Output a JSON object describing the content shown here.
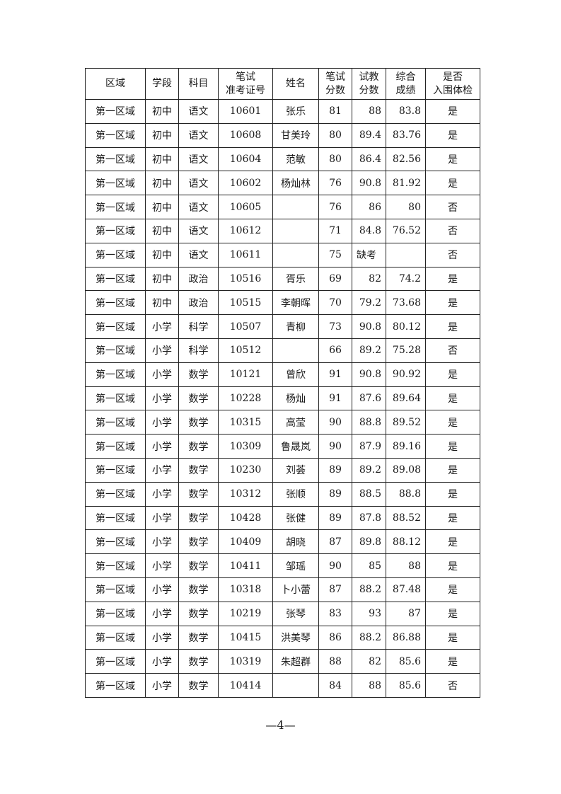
{
  "table": {
    "headers": [
      [
        "区域"
      ],
      [
        "学段"
      ],
      [
        "科目"
      ],
      [
        "笔试",
        "准考证号"
      ],
      [
        "姓名"
      ],
      [
        "笔试",
        "分数"
      ],
      [
        "试教",
        "分数"
      ],
      [
        "综合",
        "成绩"
      ],
      [
        "是否",
        "入围体检"
      ]
    ],
    "rows": [
      [
        "第一区域",
        "初中",
        "语文",
        "10601",
        "张乐",
        "81",
        "88",
        "83.8",
        "是"
      ],
      [
        "第一区域",
        "初中",
        "语文",
        "10608",
        "甘美玲",
        "80",
        "89.4",
        "83.76",
        "是"
      ],
      [
        "第一区域",
        "初中",
        "语文",
        "10604",
        "范敏",
        "80",
        "86.4",
        "82.56",
        "是"
      ],
      [
        "第一区域",
        "初中",
        "语文",
        "10602",
        "杨灿林",
        "76",
        "90.8",
        "81.92",
        "是"
      ],
      [
        "第一区域",
        "初中",
        "语文",
        "10605",
        "",
        "76",
        "86",
        "80",
        "否"
      ],
      [
        "第一区域",
        "初中",
        "语文",
        "10612",
        "",
        "71",
        "84.8",
        "76.52",
        "否"
      ],
      [
        "第一区域",
        "初中",
        "语文",
        "10611",
        "",
        "75",
        "缺考",
        "",
        "否"
      ],
      [
        "第一区域",
        "初中",
        "政治",
        "10516",
        "胥乐",
        "69",
        "82",
        "74.2",
        "是"
      ],
      [
        "第一区域",
        "初中",
        "政治",
        "10515",
        "李朝晖",
        "70",
        "79.2",
        "73.68",
        "是"
      ],
      [
        "第一区域",
        "小学",
        "科学",
        "10507",
        "青柳",
        "73",
        "90.8",
        "80.12",
        "是"
      ],
      [
        "第一区域",
        "小学",
        "科学",
        "10512",
        "",
        "66",
        "89.2",
        "75.28",
        "否"
      ],
      [
        "第一区域",
        "小学",
        "数学",
        "10121",
        "曾欣",
        "91",
        "90.8",
        "90.92",
        "是"
      ],
      [
        "第一区域",
        "小学",
        "数学",
        "10228",
        "杨灿",
        "91",
        "87.6",
        "89.64",
        "是"
      ],
      [
        "第一区域",
        "小学",
        "数学",
        "10315",
        "高莹",
        "90",
        "88.8",
        "89.52",
        "是"
      ],
      [
        "第一区域",
        "小学",
        "数学",
        "10309",
        "鲁晟岚",
        "90",
        "87.9",
        "89.16",
        "是"
      ],
      [
        "第一区域",
        "小学",
        "数学",
        "10230",
        "刘荟",
        "89",
        "89.2",
        "89.08",
        "是"
      ],
      [
        "第一区域",
        "小学",
        "数学",
        "10312",
        "张顺",
        "89",
        "88.5",
        "88.8",
        "是"
      ],
      [
        "第一区域",
        "小学",
        "数学",
        "10428",
        "张健",
        "89",
        "87.8",
        "88.52",
        "是"
      ],
      [
        "第一区域",
        "小学",
        "数学",
        "10409",
        "胡晓",
        "87",
        "89.8",
        "88.12",
        "是"
      ],
      [
        "第一区域",
        "小学",
        "数学",
        "10411",
        "邹瑶",
        "90",
        "85",
        "88",
        "是"
      ],
      [
        "第一区域",
        "小学",
        "数学",
        "10318",
        "卜小蕾",
        "87",
        "88.2",
        "87.48",
        "是"
      ],
      [
        "第一区域",
        "小学",
        "数学",
        "10219",
        "张琴",
        "83",
        "93",
        "87",
        "是"
      ],
      [
        "第一区域",
        "小学",
        "数学",
        "10415",
        "洪美琴",
        "86",
        "88.2",
        "86.88",
        "是"
      ],
      [
        "第一区域",
        "小学",
        "数学",
        "10319",
        "朱超群",
        "88",
        "82",
        "85.6",
        "是"
      ],
      [
        "第一区域",
        "小学",
        "数学",
        "10414",
        "",
        "84",
        "88",
        "85.6",
        "否"
      ]
    ]
  },
  "footer": {
    "page_number": "—4—"
  }
}
